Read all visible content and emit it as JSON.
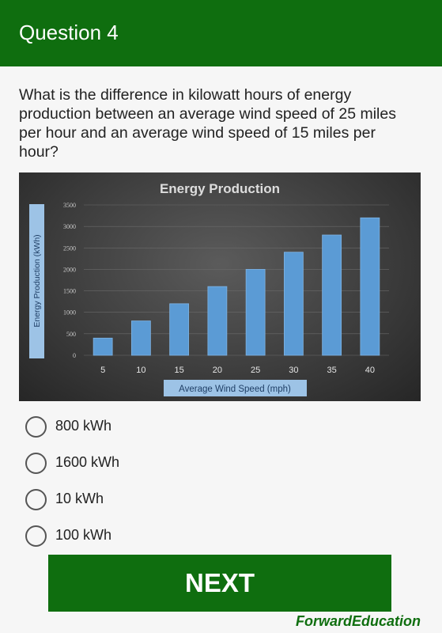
{
  "header": {
    "title": "Question 4"
  },
  "question": {
    "text": "What is the difference in kilowatt hours of energy production between an average wind speed of 25 miles per hour and an average wind speed of 15 miles per hour?"
  },
  "chart_data": {
    "type": "bar",
    "title": "Energy Production",
    "xlabel": "Average Wind Speed (mph)",
    "ylabel": "Energy Production (kWh)",
    "categories": [
      "5",
      "10",
      "15",
      "20",
      "25",
      "30",
      "35",
      "40"
    ],
    "values": [
      400,
      800,
      1200,
      1600,
      2000,
      2400,
      2800,
      3200
    ],
    "ylim": [
      0,
      3500
    ],
    "yticks": [
      "0",
      "500",
      "1000",
      "1500",
      "2000",
      "2500",
      "3000",
      "3500"
    ],
    "grid": true,
    "colors": {
      "bar": "#5b9bd5",
      "background": "#3e3e3e",
      "label_box": "#9dc3e6"
    }
  },
  "options": [
    {
      "label": "800 kWh"
    },
    {
      "label": "1600 kWh"
    },
    {
      "label": "10 kWh"
    },
    {
      "label": "100 kWh"
    }
  ],
  "footer": {
    "next_label": "NEXT",
    "brand": "ForwardEducation"
  },
  "colors": {
    "accent": "#0f6e0f"
  }
}
